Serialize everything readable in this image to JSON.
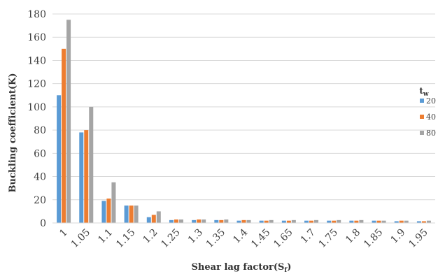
{
  "chart_data": {
    "type": "bar",
    "xlabel": "Shear lag factor(S",
    "xlabel_sub": "f",
    "xlabel_end": ")",
    "ylabel": "Buckling coefficient(K)",
    "ylim": [
      0,
      180
    ],
    "yticks": [
      0,
      20,
      40,
      60,
      80,
      100,
      120,
      140,
      160,
      180
    ],
    "grid": true,
    "legend_position": "right",
    "legend_title": "t",
    "legend_title_sub": "w",
    "categories": [
      "1",
      "1.05",
      "1.1",
      "1.15",
      "1.2",
      "1.25",
      "1.3",
      "1.35",
      "1.4",
      "1.45",
      "1.65",
      "1.7",
      "1.75",
      "1.8",
      "1.85",
      "1.9",
      "1.95"
    ],
    "series": [
      {
        "name": "20",
        "color": "#5B9BD5",
        "values": [
          110,
          78,
          19,
          15,
          5,
          2.5,
          2.5,
          2.5,
          2,
          2,
          2,
          2,
          2,
          2,
          2,
          1.5,
          1.5
        ]
      },
      {
        "name": "40",
        "color": "#ED7D31",
        "values": [
          150,
          80,
          21,
          15,
          7,
          3,
          3,
          2.5,
          2.5,
          2,
          2,
          2,
          2,
          2,
          2,
          2,
          1.5
        ]
      },
      {
        "name": "80",
        "color": "#A5A5A5",
        "values": [
          175,
          100,
          35,
          15,
          10,
          3,
          3,
          3,
          2.5,
          2.5,
          2.5,
          2.5,
          2.5,
          2.5,
          2,
          2,
          2
        ]
      }
    ]
  }
}
